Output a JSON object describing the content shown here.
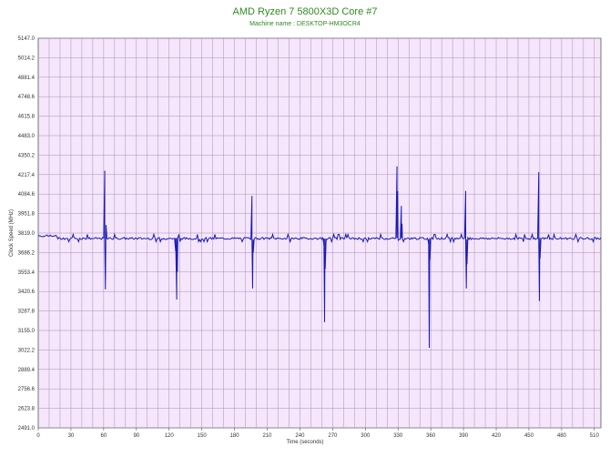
{
  "chart_data": {
    "type": "line",
    "title": "AMD Ryzen 7 5800X3D Core #7",
    "subtitle": "Machine name : DESKTOP-HM3OCR4",
    "xlabel": "Time (seconds)",
    "ylabel": "Clock Speed (MHz)",
    "xlim": [
      0,
      516
    ],
    "ylim": [
      2491.0,
      5147.0
    ],
    "x_ticks": [
      0,
      30,
      60,
      90,
      120,
      150,
      180,
      210,
      240,
      270,
      300,
      330,
      360,
      390,
      420,
      450,
      480,
      510
    ],
    "x_tick_labels": [
      "0",
      "30",
      "60",
      "90",
      "120",
      "150",
      "180",
      "210",
      "240",
      "270",
      "300",
      "330",
      "360",
      "390",
      "420",
      "450",
      "480",
      "510"
    ],
    "y_ticks": [
      2491.0,
      2623.8,
      2756.6,
      2889.4,
      3022.2,
      3155.0,
      3287.8,
      3420.6,
      3553.4,
      3686.2,
      3819.0,
      3951.8,
      4084.6,
      4217.4,
      4350.2,
      4483.0,
      4615.8,
      4748.6,
      4881.4,
      5014.2,
      5147.0
    ],
    "y_tick_labels": [
      "2491.0",
      "2623.8",
      "2756.6",
      "2889.4",
      "3022.2",
      "3155.0",
      "3287.8",
      "3420.6",
      "3553.4",
      "3686.2",
      "3819.0",
      "3951.8",
      "4084.6",
      "4217.4",
      "4350.2",
      "4483.0",
      "4615.8",
      "4748.6",
      "4881.4",
      "5014.2",
      "5147.0"
    ],
    "grid": true,
    "colors": {
      "background": "#f5e6fb",
      "grid": "#a890b8",
      "line": "#1a1ab8",
      "title": "#2e8b1f"
    },
    "baseline": 3782,
    "spikes": [
      {
        "x": 61.0,
        "y": 4240
      },
      {
        "x": 61.6,
        "y": 3440
      },
      {
        "x": 62.2,
        "y": 3870
      },
      {
        "x": 126.0,
        "y": 3700
      },
      {
        "x": 127.0,
        "y": 3370
      },
      {
        "x": 127.6,
        "y": 3560
      },
      {
        "x": 196.0,
        "y": 4068
      },
      {
        "x": 196.6,
        "y": 3445
      },
      {
        "x": 197.2,
        "y": 3690
      },
      {
        "x": 262.0,
        "y": 3740
      },
      {
        "x": 262.6,
        "y": 3215
      },
      {
        "x": 263.2,
        "y": 3580
      },
      {
        "x": 329.0,
        "y": 4270
      },
      {
        "x": 329.6,
        "y": 4100
      },
      {
        "x": 330.2,
        "y": 3770
      },
      {
        "x": 333.0,
        "y": 4000
      },
      {
        "x": 333.6,
        "y": 3880
      },
      {
        "x": 358.0,
        "y": 3750
      },
      {
        "x": 358.6,
        "y": 3040
      },
      {
        "x": 359.2,
        "y": 3640
      },
      {
        "x": 392.0,
        "y": 4102
      },
      {
        "x": 392.6,
        "y": 3445
      },
      {
        "x": 393.2,
        "y": 3610
      },
      {
        "x": 459.0,
        "y": 4230
      },
      {
        "x": 459.6,
        "y": 3360
      },
      {
        "x": 460.2,
        "y": 3650
      }
    ]
  }
}
